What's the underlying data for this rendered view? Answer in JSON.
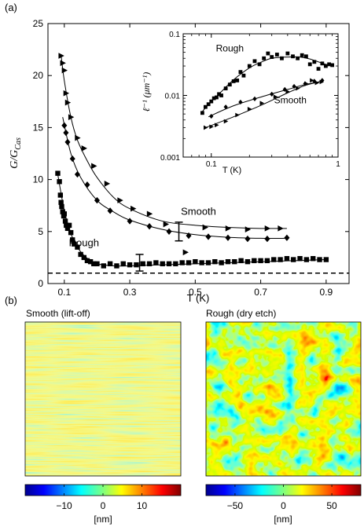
{
  "panel_labels": {
    "a": "(a)",
    "b": "(b)"
  },
  "chart_data": [
    {
      "type": "scatter",
      "panel": "(a) main",
      "xlabel": "T (K)",
      "ylabel_base": "G/G",
      "ylabel_sub": "Cas",
      "xlim": [
        0.05,
        0.97
      ],
      "ylim": [
        0,
        25
      ],
      "xticks": [
        0.1,
        0.3,
        0.5,
        0.7,
        0.9
      ],
      "yticks": [
        0,
        5,
        10,
        15,
        20,
        25
      ],
      "reference_line": {
        "y": 1,
        "style": "dashed"
      },
      "annotations": [
        {
          "text": "Smooth",
          "x": 0.51,
          "y": 6.6
        },
        {
          "text": "Rough",
          "x": 0.16,
          "y": 3.6
        }
      ],
      "error_bars": [
        {
          "x": 0.45,
          "y": 5.0,
          "yerr": 0.9
        },
        {
          "x": 0.33,
          "y": 2.0,
          "yerr": 0.8
        }
      ],
      "series": [
        {
          "marker": "square",
          "x": [
            0.08,
            0.085,
            0.088,
            0.09,
            0.092,
            0.095,
            0.098,
            0.1,
            0.103,
            0.106,
            0.11,
            0.115,
            0.12,
            0.125,
            0.13,
            0.14,
            0.15,
            0.16,
            0.17,
            0.18,
            0.19,
            0.2,
            0.22,
            0.24,
            0.26,
            0.28,
            0.3,
            0.32,
            0.34,
            0.36,
            0.38,
            0.4,
            0.42,
            0.44,
            0.46,
            0.48,
            0.5,
            0.52,
            0.54,
            0.56,
            0.58,
            0.6,
            0.62,
            0.64,
            0.66,
            0.68,
            0.7,
            0.72,
            0.74,
            0.76,
            0.78,
            0.8,
            0.82,
            0.84,
            0.86,
            0.88,
            0.9
          ],
          "y": [
            10.6,
            9.8,
            8.5,
            7.8,
            7.4,
            6.9,
            6.5,
            6.7,
            6.0,
            5.6,
            5.3,
            5.6,
            4.9,
            4.2,
            3.8,
            3.5,
            2.8,
            2.5,
            2.2,
            2.1,
            1.9,
            1.9,
            1.7,
            1.9,
            1.7,
            1.9,
            1.8,
            1.8,
            1.9,
            1.9,
            2.0,
            1.9,
            1.9,
            1.9,
            2.0,
            2.0,
            2.1,
            2.0,
            2.0,
            2.1,
            2.0,
            2.1,
            2.1,
            2.2,
            2.1,
            2.2,
            2.2,
            2.2,
            2.3,
            2.3,
            2.4,
            2.3,
            2.4,
            2.3,
            2.4,
            2.3,
            2.3
          ],
          "fit_x": [
            0.08,
            0.1,
            0.12,
            0.14,
            0.16,
            0.18,
            0.2,
            0.25,
            0.3,
            0.4,
            0.5,
            0.6,
            0.7,
            0.8,
            0.9
          ],
          "fit_y": [
            10.5,
            7.0,
            4.8,
            3.5,
            2.7,
            2.2,
            1.9,
            1.7,
            1.7,
            1.8,
            1.9,
            2.0,
            2.1,
            2.2,
            2.3
          ]
        },
        {
          "marker": "diamond",
          "x": [
            0.1,
            0.105,
            0.11,
            0.125,
            0.14,
            0.17,
            0.2,
            0.24,
            0.3,
            0.36,
            0.42,
            0.48,
            0.54,
            0.6,
            0.66,
            0.72,
            0.78
          ],
          "y": [
            15.2,
            14.5,
            13.6,
            12.0,
            10.5,
            9.5,
            8.0,
            7.0,
            6.0,
            5.5,
            5.0,
            4.6,
            4.5,
            4.4,
            4.3,
            4.3,
            4.4
          ],
          "fit_x": [
            0.095,
            0.12,
            0.15,
            0.2,
            0.25,
            0.3,
            0.4,
            0.5,
            0.6,
            0.7,
            0.78
          ],
          "fit_y": [
            16.0,
            12.5,
            10.2,
            8.0,
            6.9,
            6.1,
            5.2,
            4.7,
            4.45,
            4.35,
            4.35
          ]
        },
        {
          "marker": "triangle-right",
          "x": [
            0.09,
            0.095,
            0.1,
            0.105,
            0.11,
            0.12,
            0.14,
            0.16,
            0.19,
            0.23,
            0.27,
            0.31,
            0.36,
            0.41,
            0.47,
            0.53,
            0.6,
            0.66,
            0.72,
            0.76
          ],
          "y": [
            21.9,
            21.2,
            20.5,
            18.3,
            17.4,
            16.0,
            14.0,
            13.0,
            11.3,
            9.6,
            8.0,
            7.2,
            6.7,
            5.7,
            3.0,
            5.4,
            5.3,
            5.2,
            5.3,
            5.3
          ],
          "fit_x": [
            0.09,
            0.1,
            0.12,
            0.14,
            0.17,
            0.2,
            0.25,
            0.3,
            0.4,
            0.5,
            0.6,
            0.7,
            0.78
          ],
          "fit_y": [
            22.0,
            19.5,
            16.0,
            13.8,
            11.8,
            10.2,
            8.3,
            7.2,
            6.0,
            5.6,
            5.4,
            5.3,
            5.3
          ]
        }
      ]
    },
    {
      "type": "scatter",
      "panel": "(a) inset",
      "log_x": true,
      "log_y": true,
      "xlabel": "T (K)",
      "ylabel": "ℓ⁻¹ (μm⁻¹)",
      "xlim": [
        0.06,
        1.0
      ],
      "ylim": [
        0.001,
        0.1
      ],
      "xtick_labels": [
        "0.1",
        "1"
      ],
      "ytick_labels": [
        "0.001",
        "0.01",
        "0.1"
      ],
      "annotations": [
        {
          "text": "Rough",
          "x": 0.14,
          "y": 0.052
        },
        {
          "text": "Smooth",
          "x": 0.42,
          "y": 0.0075
        }
      ],
      "series": [
        {
          "marker": "square",
          "x": [
            0.085,
            0.09,
            0.095,
            0.1,
            0.105,
            0.11,
            0.115,
            0.12,
            0.13,
            0.14,
            0.15,
            0.16,
            0.17,
            0.18,
            0.2,
            0.22,
            0.24,
            0.26,
            0.28,
            0.3,
            0.33,
            0.36,
            0.4,
            0.44,
            0.48,
            0.52,
            0.56,
            0.6,
            0.65,
            0.7,
            0.75,
            0.8,
            0.85,
            0.9
          ],
          "y": [
            0.0052,
            0.0065,
            0.0072,
            0.008,
            0.009,
            0.0093,
            0.0105,
            0.01,
            0.013,
            0.015,
            0.017,
            0.0175,
            0.024,
            0.021,
            0.03,
            0.036,
            0.032,
            0.04,
            0.048,
            0.042,
            0.046,
            0.04,
            0.048,
            0.043,
            0.04,
            0.045,
            0.043,
            0.032,
            0.035,
            0.027,
            0.033,
            0.03,
            0.032,
            0.031
          ],
          "fit_x": [
            0.085,
            0.1,
            0.12,
            0.15,
            0.2,
            0.25,
            0.3,
            0.4,
            0.5,
            0.6,
            0.7,
            0.8,
            0.9
          ],
          "fit_y": [
            0.0055,
            0.008,
            0.0115,
            0.018,
            0.028,
            0.035,
            0.04,
            0.042,
            0.042,
            0.039,
            0.035,
            0.032,
            0.031
          ]
        },
        {
          "marker": "diamond",
          "x": [
            0.1,
            0.13,
            0.17,
            0.22,
            0.3,
            0.38,
            0.45,
            0.55,
            0.65,
            0.75
          ],
          "y": [
            0.0046,
            0.0065,
            0.0078,
            0.0088,
            0.0105,
            0.0125,
            0.014,
            0.0155,
            0.017,
            0.0175
          ],
          "fit_x": [
            0.095,
            0.15,
            0.25,
            0.4,
            0.55,
            0.75
          ],
          "fit_y": [
            0.0045,
            0.0068,
            0.0095,
            0.0125,
            0.015,
            0.017
          ]
        },
        {
          "marker": "triangle-right",
          "x": [
            0.09,
            0.1,
            0.11,
            0.13,
            0.16,
            0.2,
            0.25,
            0.32,
            0.4,
            0.48,
            0.56,
            0.62,
            0.68,
            0.74
          ],
          "y": [
            0.003,
            0.0031,
            0.0033,
            0.0038,
            0.0048,
            0.006,
            0.0075,
            0.0095,
            0.0115,
            0.013,
            0.0155,
            0.0175,
            0.016,
            0.0165
          ],
          "fit_x": [
            0.09,
            0.15,
            0.25,
            0.4,
            0.55,
            0.74
          ],
          "fit_y": [
            0.003,
            0.0045,
            0.007,
            0.011,
            0.0145,
            0.017
          ]
        }
      ]
    },
    {
      "type": "heatmap",
      "panel": "(b) left",
      "title": "Smooth (lift-off)",
      "colorbar": {
        "min": -20,
        "max": 20,
        "tick_values": [
          -10,
          0,
          10
        ],
        "tick_labels": [
          "−10",
          "0",
          "10"
        ],
        "unit": "[nm]"
      },
      "colormap": "jet",
      "texture": "horizontal streaks"
    },
    {
      "type": "heatmap",
      "panel": "(b) right",
      "title": "Rough (dry etch)",
      "colorbar": {
        "min": -80,
        "max": 80,
        "tick_values": [
          -50,
          0,
          50
        ],
        "tick_labels": [
          "−50",
          "0",
          "50"
        ],
        "unit": "[nm]"
      },
      "colormap": "jet",
      "texture": "granular islands"
    }
  ]
}
